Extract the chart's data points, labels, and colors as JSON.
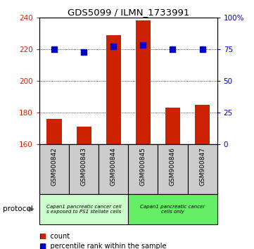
{
  "title": "GDS5099 / ILMN_1733991",
  "samples": [
    "GSM900842",
    "GSM900843",
    "GSM900844",
    "GSM900845",
    "GSM900846",
    "GSM900847"
  ],
  "counts": [
    176,
    171,
    229,
    238,
    183,
    185
  ],
  "percentile_ranks": [
    75,
    73,
    77,
    78,
    75,
    75
  ],
  "ylim_left": [
    160,
    240
  ],
  "ylim_right": [
    0,
    100
  ],
  "yticks_left": [
    160,
    180,
    200,
    220,
    240
  ],
  "yticks_right": [
    0,
    25,
    50,
    75,
    100
  ],
  "ytick_labels_right": [
    "0",
    "25",
    "50",
    "75",
    "100%"
  ],
  "bar_color": "#cc2200",
  "dot_color": "#0000cc",
  "protocol_group1_color": "#ccffcc",
  "protocol_group2_color": "#66ee66",
  "protocol_group1_label": "Capan1 pancreatic cancer cell\ns exposed to PS1 stellate cells",
  "protocol_group2_label": "Capan1 pancreatic cancer\ncells only",
  "legend_count_label": "count",
  "legend_percentile_label": "percentile rank within the sample",
  "protocol_label": "protocol",
  "bar_width": 0.5,
  "dot_size": 30,
  "sample_box_color": "#cccccc"
}
